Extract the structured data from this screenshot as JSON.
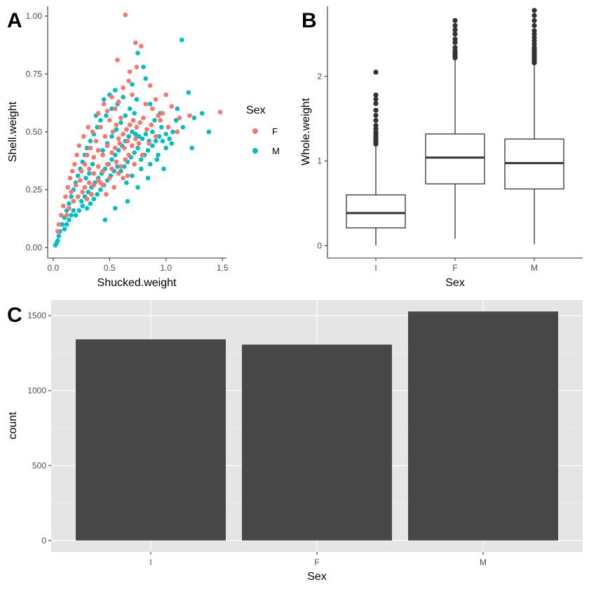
{
  "panels": {
    "A": "A",
    "B": "B",
    "C": "C"
  },
  "colors": {
    "F": "#F8766D",
    "M": "#00BFC4",
    "box_line": "#333333",
    "bar_fill": "#474747",
    "panel_bg": "#E5E5E5",
    "grid": "#FFFFFF"
  },
  "chart_data": [
    {
      "id": "A",
      "type": "scatter",
      "xlabel": "Shucked.weight",
      "ylabel": "Shell.weight",
      "xlim": [
        -0.03,
        1.53
      ],
      "ylim": [
        -0.03,
        1.03
      ],
      "x_ticks": [
        0.0,
        0.5,
        1.0,
        1.5
      ],
      "x_tick_labels": [
        "0.0",
        "0.5",
        "1.0",
        "1.5"
      ],
      "y_ticks": [
        0.0,
        0.25,
        0.5,
        0.75,
        1.0
      ],
      "y_tick_labels": [
        "0.00",
        "0.25",
        "0.50",
        "0.75",
        "1.00"
      ],
      "grid": false,
      "legend": {
        "title": "Sex",
        "position": "right",
        "items": [
          {
            "label": "F",
            "color": "#F8766D"
          },
          {
            "label": "M",
            "color": "#00BFC4"
          }
        ]
      },
      "series": [
        {
          "name": "F",
          "color": "#F8766D",
          "points": [
            [
              0.64,
              1.005
            ],
            [
              0.73,
              0.885
            ],
            [
              0.78,
              0.87
            ],
            [
              0.57,
              0.81
            ],
            [
              0.74,
              0.78
            ],
            [
              0.68,
              0.76
            ],
            [
              0.67,
              0.72
            ],
            [
              0.62,
              0.69
            ],
            [
              0.7,
              0.66
            ],
            [
              0.86,
              0.7
            ],
            [
              1.48,
              0.585
            ],
            [
              1.21,
              0.57
            ],
            [
              1.0,
              0.66
            ],
            [
              0.91,
              0.64
            ],
            [
              1.05,
              0.61
            ],
            [
              0.93,
              0.57
            ],
            [
              0.55,
              0.6
            ],
            [
              0.48,
              0.59
            ],
            [
              0.4,
              0.58
            ],
            [
              0.31,
              0.52
            ],
            [
              0.27,
              0.48
            ],
            [
              0.23,
              0.44
            ],
            [
              0.21,
              0.4
            ],
            [
              0.19,
              0.36
            ],
            [
              0.17,
              0.33
            ],
            [
              0.15,
              0.3
            ],
            [
              0.13,
              0.26
            ],
            [
              0.11,
              0.22
            ],
            [
              0.09,
              0.18
            ],
            [
              0.07,
              0.14
            ],
            [
              0.05,
              0.1
            ],
            [
              0.04,
              0.07
            ],
            [
              0.35,
              0.5
            ],
            [
              0.38,
              0.46
            ],
            [
              0.42,
              0.52
            ],
            [
              0.46,
              0.48
            ],
            [
              0.5,
              0.55
            ],
            [
              0.53,
              0.5
            ],
            [
              0.56,
              0.53
            ],
            [
              0.6,
              0.56
            ],
            [
              0.58,
              0.47
            ],
            [
              0.62,
              0.49
            ],
            [
              0.65,
              0.51
            ],
            [
              0.68,
              0.53
            ],
            [
              0.71,
              0.55
            ],
            [
              0.74,
              0.52
            ],
            [
              0.77,
              0.54
            ],
            [
              0.8,
              0.56
            ],
            [
              0.83,
              0.51
            ],
            [
              0.87,
              0.53
            ],
            [
              0.95,
              0.55
            ],
            [
              1.02,
              0.52
            ],
            [
              1.1,
              0.5
            ],
            [
              0.3,
              0.4
            ],
            [
              0.33,
              0.43
            ],
            [
              0.36,
              0.39
            ],
            [
              0.4,
              0.42
            ],
            [
              0.44,
              0.4
            ],
            [
              0.48,
              0.44
            ],
            [
              0.52,
              0.41
            ],
            [
              0.55,
              0.43
            ],
            [
              0.59,
              0.45
            ],
            [
              0.63,
              0.43
            ],
            [
              0.66,
              0.46
            ],
            [
              0.7,
              0.44
            ],
            [
              0.73,
              0.47
            ],
            [
              0.76,
              0.45
            ],
            [
              0.25,
              0.33
            ],
            [
              0.28,
              0.36
            ],
            [
              0.32,
              0.34
            ],
            [
              0.36,
              0.32
            ],
            [
              0.4,
              0.35
            ],
            [
              0.44,
              0.33
            ],
            [
              0.48,
              0.36
            ],
            [
              0.52,
              0.34
            ],
            [
              0.56,
              0.37
            ],
            [
              0.6,
              0.35
            ],
            [
              0.64,
              0.38
            ],
            [
              0.2,
              0.27
            ],
            [
              0.24,
              0.29
            ],
            [
              0.28,
              0.26
            ],
            [
              0.32,
              0.28
            ],
            [
              0.36,
              0.27
            ],
            [
              0.4,
              0.29
            ],
            [
              0.44,
              0.27
            ],
            [
              0.22,
              0.22
            ],
            [
              0.26,
              0.24
            ],
            [
              0.3,
              0.21
            ],
            [
              0.34,
              0.23
            ],
            [
              0.18,
              0.2
            ],
            [
              0.16,
              0.24
            ],
            [
              0.14,
              0.17
            ],
            [
              0.12,
              0.14
            ],
            [
              0.45,
              0.62
            ],
            [
              0.52,
              0.65
            ],
            [
              0.58,
              0.63
            ],
            [
              0.82,
              0.62
            ],
            [
              0.88,
              0.6
            ],
            [
              0.97,
              0.58
            ],
            [
              1.12,
              0.56
            ],
            [
              0.42,
              0.28
            ],
            [
              0.5,
              0.3
            ],
            [
              0.58,
              0.32
            ],
            [
              0.66,
              0.31
            ],
            [
              0.72,
              0.36
            ],
            [
              0.79,
              0.4
            ],
            [
              0.85,
              0.45
            ],
            [
              0.91,
              0.48
            ],
            [
              0.67,
              0.4
            ],
            [
              0.62,
              0.3
            ],
            [
              0.54,
              0.26
            ],
            [
              0.47,
              0.23
            ]
          ]
        },
        {
          "name": "M",
          "color": "#00BFC4",
          "points": [
            [
              1.14,
              0.897
            ],
            [
              0.75,
              0.84
            ],
            [
              0.8,
              0.78
            ],
            [
              0.82,
              0.73
            ],
            [
              0.7,
              0.705
            ],
            [
              1.2,
              0.67
            ],
            [
              0.74,
              0.64
            ],
            [
              0.86,
              0.62
            ],
            [
              1.32,
              0.58
            ],
            [
              1.38,
              0.5
            ],
            [
              1.23,
              0.43
            ],
            [
              1.25,
              0.56
            ],
            [
              1.15,
              0.52
            ],
            [
              1.0,
              0.43
            ],
            [
              0.98,
              0.34
            ],
            [
              0.93,
              0.4
            ],
            [
              0.66,
              0.2
            ],
            [
              0.55,
              0.17
            ],
            [
              0.46,
              0.12
            ],
            [
              0.75,
              0.26
            ],
            [
              0.84,
              0.3
            ],
            [
              1.05,
              0.45
            ],
            [
              1.09,
              0.55
            ],
            [
              0.96,
              0.52
            ],
            [
              0.88,
              0.5
            ],
            [
              0.02,
              0.01
            ],
            [
              0.03,
              0.02
            ],
            [
              0.04,
              0.03
            ],
            [
              0.05,
              0.05
            ],
            [
              0.06,
              0.07
            ],
            [
              0.08,
              0.1
            ],
            [
              0.1,
              0.13
            ],
            [
              0.12,
              0.16
            ],
            [
              0.14,
              0.19
            ],
            [
              0.16,
              0.22
            ],
            [
              0.18,
              0.25
            ],
            [
              0.2,
              0.28
            ],
            [
              0.22,
              0.31
            ],
            [
              0.24,
              0.34
            ],
            [
              0.26,
              0.37
            ],
            [
              0.28,
              0.4
            ],
            [
              0.3,
              0.43
            ],
            [
              0.33,
              0.46
            ],
            [
              0.36,
              0.49
            ],
            [
              0.39,
              0.52
            ],
            [
              0.42,
              0.55
            ],
            [
              0.47,
              0.57
            ],
            [
              0.52,
              0.6
            ],
            [
              0.57,
              0.62
            ],
            [
              0.62,
              0.65
            ],
            [
              0.55,
              0.68
            ],
            [
              0.5,
              0.66
            ],
            [
              0.45,
              0.64
            ],
            [
              0.38,
              0.57
            ],
            [
              0.25,
              0.2
            ],
            [
              0.28,
              0.22
            ],
            [
              0.31,
              0.24
            ],
            [
              0.34,
              0.26
            ],
            [
              0.37,
              0.28
            ],
            [
              0.4,
              0.3
            ],
            [
              0.43,
              0.32
            ],
            [
              0.46,
              0.34
            ],
            [
              0.49,
              0.36
            ],
            [
              0.52,
              0.38
            ],
            [
              0.55,
              0.4
            ],
            [
              0.58,
              0.42
            ],
            [
              0.61,
              0.44
            ],
            [
              0.64,
              0.46
            ],
            [
              0.67,
              0.48
            ],
            [
              0.7,
              0.5
            ],
            [
              0.73,
              0.49
            ],
            [
              0.76,
              0.48
            ],
            [
              0.79,
              0.47
            ],
            [
              0.82,
              0.49
            ],
            [
              0.85,
              0.46
            ],
            [
              0.88,
              0.44
            ],
            [
              0.91,
              0.46
            ],
            [
              0.94,
              0.48
            ],
            [
              0.97,
              0.46
            ],
            [
              1.0,
              0.49
            ],
            [
              1.03,
              0.47
            ],
            [
              1.06,
              0.5
            ],
            [
              0.6,
              0.33
            ],
            [
              0.63,
              0.35
            ],
            [
              0.66,
              0.37
            ],
            [
              0.69,
              0.39
            ],
            [
              0.72,
              0.41
            ],
            [
              0.75,
              0.43
            ],
            [
              0.78,
              0.38
            ],
            [
              0.81,
              0.4
            ],
            [
              0.84,
              0.42
            ],
            [
              0.3,
              0.17
            ],
            [
              0.33,
              0.19
            ],
            [
              0.36,
              0.21
            ],
            [
              0.39,
              0.23
            ],
            [
              0.42,
              0.25
            ],
            [
              0.45,
              0.27
            ],
            [
              0.48,
              0.29
            ],
            [
              0.51,
              0.31
            ],
            [
              0.54,
              0.33
            ],
            [
              0.57,
              0.35
            ],
            [
              0.2,
              0.14
            ],
            [
              0.23,
              0.16
            ],
            [
              0.26,
              0.18
            ],
            [
              0.1,
              0.08
            ],
            [
              0.12,
              0.1
            ],
            [
              0.14,
              0.12
            ],
            [
              0.16,
              0.14
            ],
            [
              0.18,
              0.16
            ],
            [
              0.44,
              0.42
            ],
            [
              0.48,
              0.45
            ],
            [
              0.52,
              0.48
            ],
            [
              0.56,
              0.51
            ],
            [
              0.6,
              0.54
            ],
            [
              0.64,
              0.57
            ],
            [
              0.68,
              0.6
            ],
            [
              0.72,
              0.58
            ],
            [
              0.35,
              0.36
            ],
            [
              0.32,
              0.32
            ],
            [
              0.29,
              0.3
            ],
            [
              0.9,
              0.55
            ],
            [
              0.95,
              0.58
            ],
            [
              1.1,
              0.6
            ],
            [
              0.65,
              0.28
            ],
            [
              0.7,
              0.31
            ],
            [
              0.78,
              0.34
            ],
            [
              0.86,
              0.36
            ],
            [
              0.92,
              0.38
            ]
          ]
        }
      ]
    },
    {
      "id": "B",
      "type": "box",
      "xlabel": "Sex",
      "ylabel": "Whole.weight",
      "categories": [
        "I",
        "F",
        "M"
      ],
      "ylim": [
        -0.13,
        2.82
      ],
      "y_ticks": [
        0,
        1,
        2
      ],
      "y_tick_labels": [
        "0",
        "1",
        "2"
      ],
      "grid": false,
      "boxes": [
        {
          "category": "I",
          "min": 0.002,
          "q1": 0.21,
          "median": 0.385,
          "q3": 0.6,
          "whisker_high": 1.18,
          "outliers": [
            1.2,
            1.22,
            1.24,
            1.26,
            1.28,
            1.31,
            1.34,
            1.38,
            1.42,
            1.48,
            1.54,
            1.6,
            1.68,
            1.73,
            1.78,
            2.05
          ]
        },
        {
          "category": "F",
          "min": 0.08,
          "q1": 0.73,
          "median": 1.04,
          "q3": 1.32,
          "whisker_high": 2.2,
          "outliers": [
            2.22,
            2.24,
            2.26,
            2.28,
            2.3,
            2.34,
            2.4,
            2.44,
            2.5,
            2.55,
            2.6,
            2.66
          ]
        },
        {
          "category": "M",
          "min": 0.015,
          "q1": 0.67,
          "median": 0.975,
          "q3": 1.26,
          "whisker_high": 2.14,
          "outliers": [
            2.16,
            2.18,
            2.2,
            2.22,
            2.24,
            2.26,
            2.28,
            2.3,
            2.32,
            2.34,
            2.38,
            2.42,
            2.46,
            2.5,
            2.54,
            2.6,
            2.66,
            2.72,
            2.78
          ]
        }
      ]
    },
    {
      "id": "C",
      "type": "bar",
      "xlabel": "Sex",
      "ylabel": "count",
      "categories": [
        "I",
        "F",
        "M"
      ],
      "values": [
        1342,
        1307,
        1528
      ],
      "ylim": [
        -76,
        1604
      ],
      "y_ticks": [
        0,
        500,
        1000,
        1500
      ],
      "y_tick_labels": [
        "0",
        "500",
        "1000",
        "1500"
      ],
      "grid": true
    }
  ]
}
